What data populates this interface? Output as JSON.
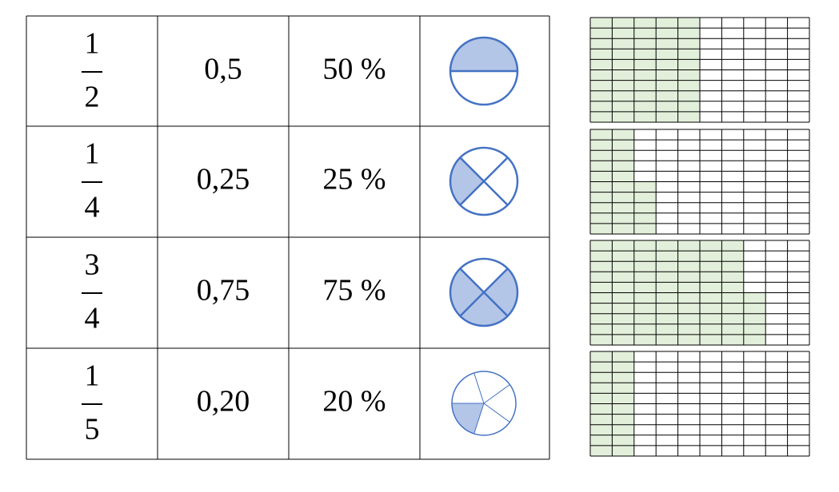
{
  "table": {
    "rows": [
      {
        "numerator": "1",
        "denominator": "2",
        "decimal": "0,5",
        "percent": "50 %"
      },
      {
        "numerator": "1",
        "denominator": "4",
        "decimal": "0,25",
        "percent": "25 %"
      },
      {
        "numerator": "3",
        "denominator": "4",
        "decimal": "0,75",
        "percent": "75 %"
      },
      {
        "numerator": "1",
        "denominator": "5",
        "decimal": "0,20",
        "percent": "20 %"
      }
    ]
  }
}
